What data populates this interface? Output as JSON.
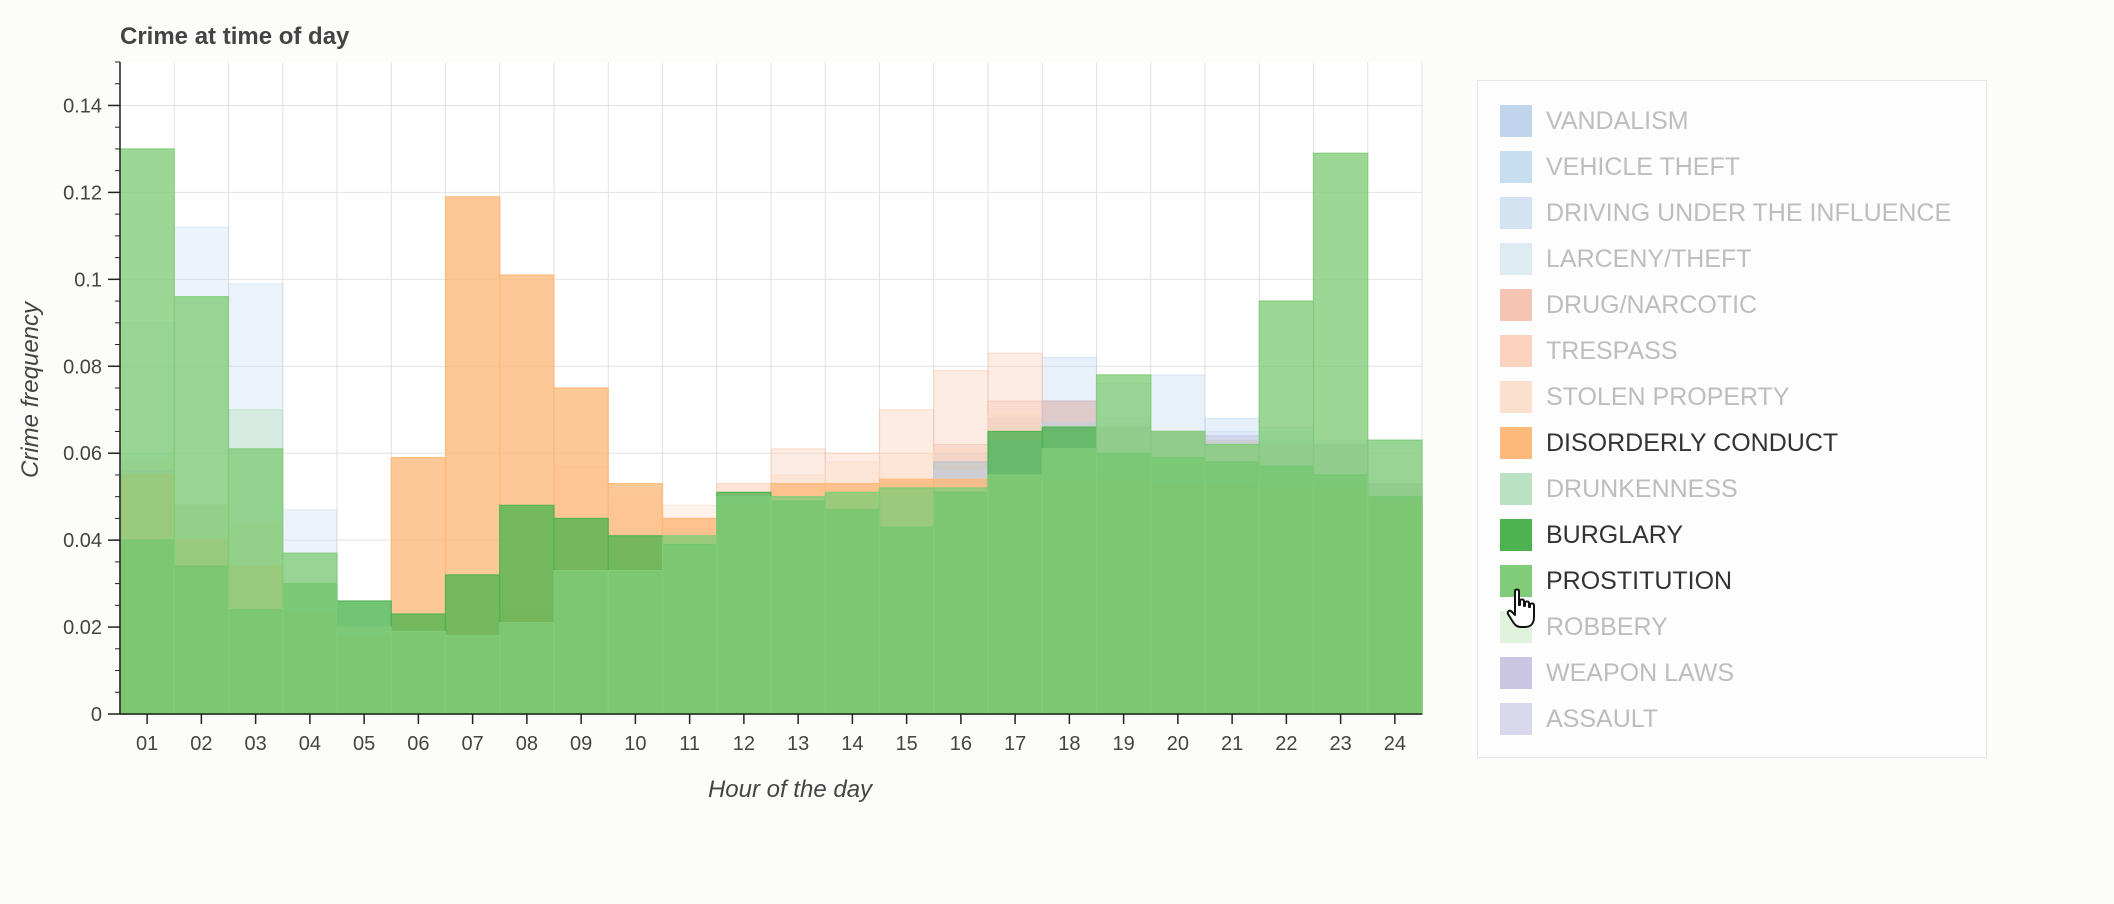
{
  "chart_data": {
    "type": "bar",
    "title": "Crime at time of day",
    "xlabel": "Hour of the day",
    "ylabel": "Crime frequency",
    "ylim": [
      0,
      0.15
    ],
    "yticks": [
      "0",
      "0.02",
      "0.04",
      "0.06",
      "0.08",
      "0.1",
      "0.12",
      "0.14"
    ],
    "categories": [
      "01",
      "02",
      "03",
      "04",
      "05",
      "06",
      "07",
      "08",
      "09",
      "10",
      "11",
      "12",
      "13",
      "14",
      "15",
      "16",
      "17",
      "18",
      "19",
      "20",
      "21",
      "22",
      "23",
      "24"
    ],
    "grid": true,
    "legend_position": "right",
    "series": [
      {
        "name": "VANDALISM",
        "color": "#aec7e8",
        "active": false,
        "values": [
          0.055,
          0.04,
          0.034,
          0.024,
          0.018,
          0.012,
          0.012,
          0.021,
          0.03,
          0.03,
          0.032,
          0.036,
          0.038,
          0.045,
          0.047,
          0.055,
          0.065,
          0.067,
          0.065,
          0.065,
          0.063,
          0.062,
          0.053,
          0.053
        ]
      },
      {
        "name": "VEHICLE THEFT",
        "color": "#b6d4ee",
        "active": false,
        "values": [
          0.058,
          0.048,
          0.044,
          0.024,
          0.018,
          0.012,
          0.012,
          0.021,
          0.03,
          0.031,
          0.034,
          0.038,
          0.04,
          0.045,
          0.048,
          0.06,
          0.068,
          0.082,
          0.076,
          0.078,
          0.068,
          0.063,
          0.062,
          0.053
        ]
      },
      {
        "name": "DRIVING UNDER THE INFLUENCE",
        "color": "#c6dbef",
        "active": false,
        "values": [
          0.09,
          0.112,
          0.099,
          0.047,
          0.02,
          0.011,
          0.006,
          0.005,
          0.004,
          0.006,
          0.012,
          0.02,
          0.024,
          0.024,
          0.023,
          0.024,
          0.026,
          0.041,
          0.055,
          0.06,
          0.065,
          0.065,
          0.063,
          0.063
        ]
      },
      {
        "name": "LARCENY/THEFT",
        "color": "#d5e6ef",
        "active": false,
        "values": [
          0.056,
          0.04,
          0.034,
          0.023,
          0.016,
          0.009,
          0.008,
          0.02,
          0.022,
          0.026,
          0.032,
          0.038,
          0.04,
          0.042,
          0.046,
          0.056,
          0.063,
          0.07,
          0.068,
          0.065,
          0.063,
          0.062,
          0.06,
          0.053
        ]
      },
      {
        "name": "DRUG/NARCOTIC",
        "color": "#f4b29a",
        "active": false,
        "values": [
          0.055,
          0.04,
          0.034,
          0.024,
          0.016,
          0.01,
          0.012,
          0.024,
          0.032,
          0.032,
          0.032,
          0.036,
          0.046,
          0.046,
          0.053,
          0.062,
          0.072,
          0.072,
          0.066,
          0.065,
          0.063,
          0.062,
          0.062,
          0.053
        ]
      },
      {
        "name": "TRESPASS",
        "color": "#f9c4a8",
        "active": false,
        "values": [
          0.057,
          0.048,
          0.044,
          0.024,
          0.018,
          0.012,
          0.012,
          0.024,
          0.032,
          0.036,
          0.045,
          0.053,
          0.061,
          0.06,
          0.07,
          0.079,
          0.083,
          0.072,
          0.066,
          0.065,
          0.063,
          0.062,
          0.062,
          0.053
        ]
      },
      {
        "name": "STOLEN PROPERTY",
        "color": "#fcd7bf",
        "active": false,
        "values": [
          0.056,
          0.048,
          0.044,
          0.024,
          0.018,
          0.012,
          0.012,
          0.024,
          0.057,
          0.05,
          0.048,
          0.053,
          0.055,
          0.058,
          0.06,
          0.061,
          0.069,
          0.072,
          0.066,
          0.065,
          0.063,
          0.062,
          0.062,
          0.053
        ]
      },
      {
        "name": "DISORDERLY CONDUCT",
        "color": "#fdb97a",
        "active": true,
        "values": [
          0.055,
          0.04,
          0.034,
          0.023,
          0.018,
          0.059,
          0.119,
          0.101,
          0.075,
          0.053,
          0.045,
          0.048,
          0.053,
          0.053,
          0.054,
          0.054,
          0.054,
          0.054,
          0.054,
          0.053,
          0.053,
          0.052,
          0.052,
          0.049
        ]
      },
      {
        "name": "DRUNKENNESS",
        "color": "#a6d9b0",
        "active": false,
        "values": [
          0.06,
          0.048,
          0.07,
          0.024,
          0.016,
          0.01,
          0.012,
          0.02,
          0.03,
          0.035,
          0.035,
          0.046,
          0.046,
          0.046,
          0.044,
          0.058,
          0.062,
          0.067,
          0.066,
          0.065,
          0.063,
          0.066,
          0.062,
          0.053
        ]
      },
      {
        "name": "BURGLARY",
        "color": "#4db350",
        "active": true,
        "values": [
          0.04,
          0.034,
          0.024,
          0.03,
          0.026,
          0.023,
          0.032,
          0.048,
          0.045,
          0.041,
          0.039,
          0.051,
          0.049,
          0.047,
          0.043,
          0.051,
          0.065,
          0.066,
          0.06,
          0.059,
          0.058,
          0.057,
          0.055,
          0.05
        ]
      },
      {
        "name": "PROSTITUTION",
        "color": "#80cc78",
        "active": true,
        "values": [
          0.13,
          0.096,
          0.061,
          0.037,
          0.02,
          0.019,
          0.018,
          0.021,
          0.033,
          0.033,
          0.041,
          0.05,
          0.05,
          0.051,
          0.052,
          0.052,
          0.055,
          0.061,
          0.078,
          0.065,
          0.062,
          0.095,
          0.129,
          0.063
        ]
      },
      {
        "name": "ROBBERY",
        "color": "#d9f0d3",
        "active": false,
        "values": [
          0.058,
          0.048,
          0.044,
          0.024,
          0.018,
          0.012,
          0.012,
          0.021,
          0.03,
          0.032,
          0.034,
          0.038,
          0.04,
          0.044,
          0.046,
          0.056,
          0.063,
          0.067,
          0.066,
          0.065,
          0.063,
          0.062,
          0.062,
          0.053
        ]
      },
      {
        "name": "WEAPON LAWS",
        "color": "#b8b3da",
        "active": false,
        "values": [
          0.056,
          0.04,
          0.034,
          0.024,
          0.016,
          0.01,
          0.012,
          0.02,
          0.03,
          0.031,
          0.032,
          0.036,
          0.043,
          0.045,
          0.05,
          0.058,
          0.063,
          0.072,
          0.066,
          0.065,
          0.064,
          0.062,
          0.062,
          0.053
        ]
      },
      {
        "name": "ASSAULT",
        "color": "#cecbe6",
        "active": false,
        "values": [
          0.056,
          0.04,
          0.034,
          0.024,
          0.016,
          0.01,
          0.012,
          0.02,
          0.03,
          0.031,
          0.032,
          0.036,
          0.04,
          0.044,
          0.046,
          0.056,
          0.063,
          0.067,
          0.066,
          0.065,
          0.063,
          0.062,
          0.062,
          0.053
        ]
      }
    ]
  }
}
